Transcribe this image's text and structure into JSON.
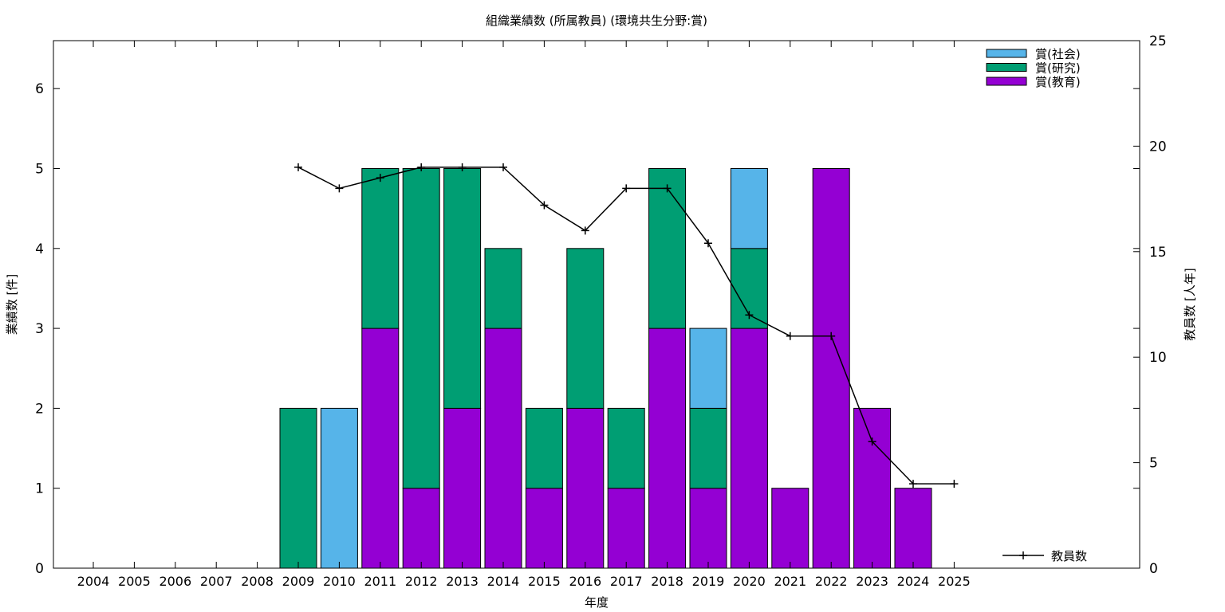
{
  "chart_data": {
    "type": "bar",
    "stacked": true,
    "title": "組織業績数 (所属教員) (環境共生分野:賞)",
    "xlabel": "年度",
    "ylabel": "業績数 [件]",
    "y2label": "教員数 [人年]",
    "categories": [
      "2004",
      "2005",
      "2006",
      "2007",
      "2008",
      "2009",
      "2010",
      "2011",
      "2012",
      "2013",
      "2014",
      "2015",
      "2016",
      "2017",
      "2018",
      "2019",
      "2020",
      "2021",
      "2022",
      "2023",
      "2024",
      "2025"
    ],
    "ylim": [
      0,
      6.6
    ],
    "yticks": [
      0,
      1,
      2,
      3,
      4,
      5,
      6
    ],
    "y2lim": [
      0,
      25
    ],
    "y2ticks": [
      0,
      5,
      10,
      15,
      20,
      25
    ],
    "grid": false,
    "legend_position": "top-right",
    "series": [
      {
        "name": "賞(教育)",
        "color": "#9400d3",
        "values": [
          0,
          0,
          0,
          0,
          0,
          0,
          0,
          3,
          1,
          2,
          3,
          1,
          2,
          1,
          3,
          1,
          3,
          1,
          5,
          2,
          1,
          0
        ]
      },
      {
        "name": "賞(研究)",
        "color": "#009e73",
        "values": [
          0,
          0,
          0,
          0,
          0,
          2,
          0,
          2,
          4,
          3,
          1,
          1,
          2,
          1,
          2,
          1,
          1,
          0,
          0,
          0,
          0,
          0
        ]
      },
      {
        "name": "賞(社会)",
        "color": "#56b4e9",
        "values": [
          0,
          0,
          0,
          0,
          0,
          0,
          2,
          0,
          0,
          0,
          0,
          0,
          0,
          0,
          0,
          1,
          1,
          0,
          0,
          0,
          0,
          0
        ]
      }
    ],
    "line_series": {
      "name": "教員数",
      "color": "#000000",
      "axis": "y2",
      "x": [
        "2009",
        "2010",
        "2011",
        "2012",
        "2013",
        "2014",
        "2015",
        "2016",
        "2017",
        "2018",
        "2019",
        "2020",
        "2021",
        "2022",
        "2023",
        "2024",
        "2025"
      ],
      "values": [
        19,
        18,
        18.5,
        19,
        19,
        19,
        17.2,
        16,
        18,
        18,
        15.4,
        12,
        11,
        11,
        6,
        4,
        4
      ]
    }
  }
}
